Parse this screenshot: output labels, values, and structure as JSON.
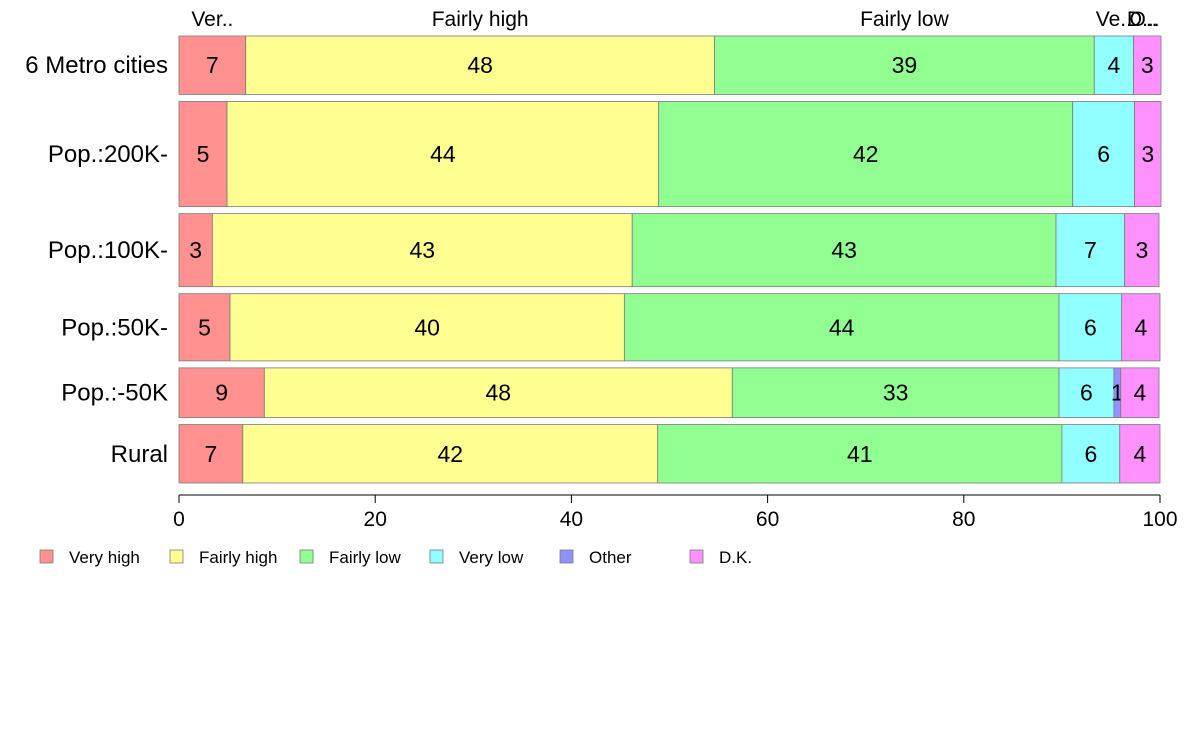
{
  "chart_data": {
    "type": "bar",
    "orientation": "horizontal",
    "stacked": true,
    "categories": [
      "6 Metro cities",
      "Pop.:200K-",
      "Pop.:100K-",
      "Pop.:50K-",
      "Pop.:-50K",
      "Rural"
    ],
    "category_weights": [
      1.0,
      1.8,
      1.25,
      1.15,
      0.85,
      1.0
    ],
    "series": [
      {
        "name": "Very high",
        "color": "#ff9191",
        "values": [
          6.8,
          4.9,
          3.4,
          5.2,
          8.7,
          6.5
        ]
      },
      {
        "name": "Fairly high",
        "color": "#ffff91",
        "values": [
          47.8,
          44.0,
          42.8,
          40.2,
          47.7,
          42.3
        ]
      },
      {
        "name": "Fairly low",
        "color": "#91ff91",
        "values": [
          38.7,
          42.2,
          43.2,
          44.3,
          33.3,
          41.2
        ]
      },
      {
        "name": "Very low",
        "color": "#91ffff",
        "values": [
          4.0,
          6.3,
          7.0,
          6.4,
          5.6,
          5.9
        ]
      },
      {
        "name": "Other",
        "color": "#9191ff",
        "values": [
          0,
          0,
          0,
          0,
          0.7,
          0
        ]
      },
      {
        "name": "D.K.",
        "color": "#ff91ff",
        "values": [
          2.8,
          2.7,
          3.5,
          3.9,
          3.9,
          4.1
        ]
      }
    ],
    "data_labels": [
      [
        "7",
        "48",
        "39",
        "4",
        "",
        "3"
      ],
      [
        "5",
        "44",
        "42",
        "6",
        "",
        "3"
      ],
      [
        "3",
        "43",
        "43",
        "7",
        "",
        "3"
      ],
      [
        "5",
        "40",
        "44",
        "6",
        "",
        "4"
      ],
      [
        "9",
        "48",
        "33",
        "6",
        "1",
        "4"
      ],
      [
        "7",
        "42",
        "41",
        "6",
        "",
        "4"
      ]
    ],
    "top_labels": [
      "Ver..",
      "Fairly high",
      "Fairly low",
      "Ve..",
      "O..",
      "D..."
    ],
    "xlim": [
      0,
      100
    ],
    "xticks": [
      0,
      20,
      40,
      60,
      80,
      100
    ],
    "xlabel": "",
    "ylabel": "",
    "title": "",
    "grid": false,
    "legend_position": "bottom"
  }
}
